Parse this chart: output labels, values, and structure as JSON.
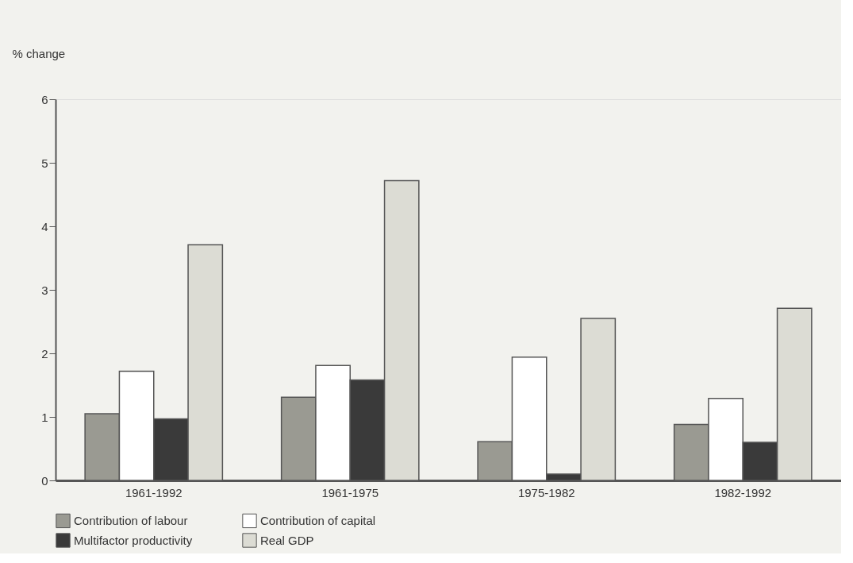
{
  "chart_data": {
    "type": "bar",
    "ylabel": "% change",
    "categories": [
      "1961-1992",
      "1961-1975",
      "1975-1982",
      "1982-1992"
    ],
    "series": [
      {
        "name": "Contribution of labour",
        "color": "#9a9a92",
        "values": [
          1.05,
          1.31,
          0.61,
          0.88
        ]
      },
      {
        "name": "Contribution of capital",
        "color": "#ffffff",
        "values": [
          1.72,
          1.81,
          1.94,
          1.29
        ]
      },
      {
        "name": "Multifactor productivity",
        "color": "#3a3a3a",
        "values": [
          0.97,
          1.58,
          0.1,
          0.6
        ]
      },
      {
        "name": "Real GDP",
        "color": "#dcdcd4",
        "values": [
          3.71,
          4.72,
          2.55,
          2.71
        ]
      }
    ],
    "ylim": [
      0,
      6
    ],
    "yticks": [
      0,
      1,
      2,
      3,
      4,
      5,
      6
    ],
    "grid": false,
    "legend": "bottom"
  }
}
